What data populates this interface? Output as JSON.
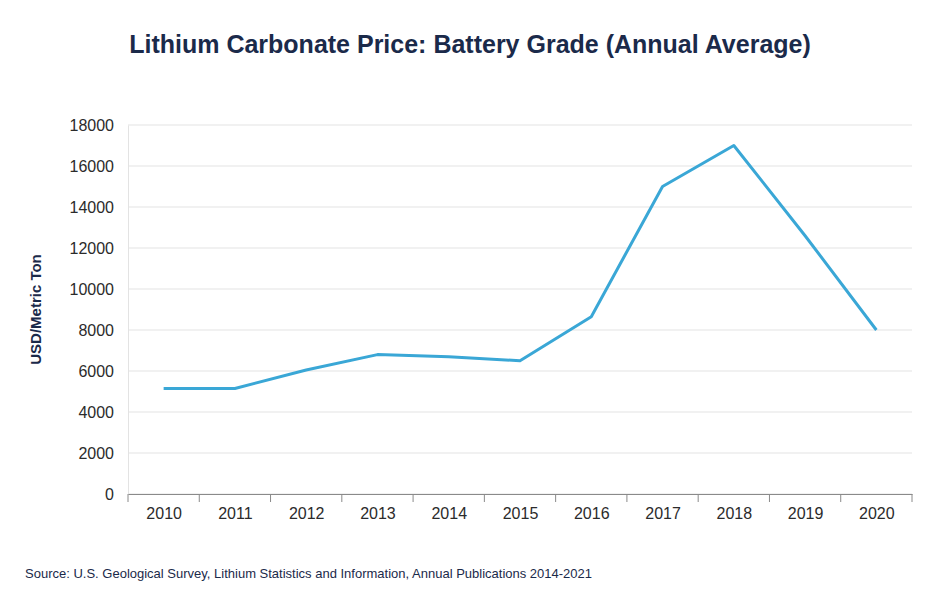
{
  "chart_data": {
    "type": "line",
    "title": "Lithium Carbonate Price: Battery Grade (Annual Average)",
    "y_label": "USD/Metric Ton",
    "source": "Source: U.S. Geological Survey, Lithium Statistics and Information, Annual Publications 2014-2021",
    "categories": [
      "2010",
      "2011",
      "2012",
      "2013",
      "2014",
      "2015",
      "2016",
      "2017",
      "2018",
      "2019",
      "2020"
    ],
    "values": [
      5150,
      5150,
      6050,
      6800,
      6700,
      6500,
      8650,
      15000,
      17000,
      12600,
      8000
    ],
    "color": "#3aa7d6",
    "ylim": [
      0,
      18000
    ],
    "yticks": [
      0,
      2000,
      4000,
      6000,
      8000,
      10000,
      12000,
      14000,
      16000,
      18000
    ],
    "grid": true
  }
}
